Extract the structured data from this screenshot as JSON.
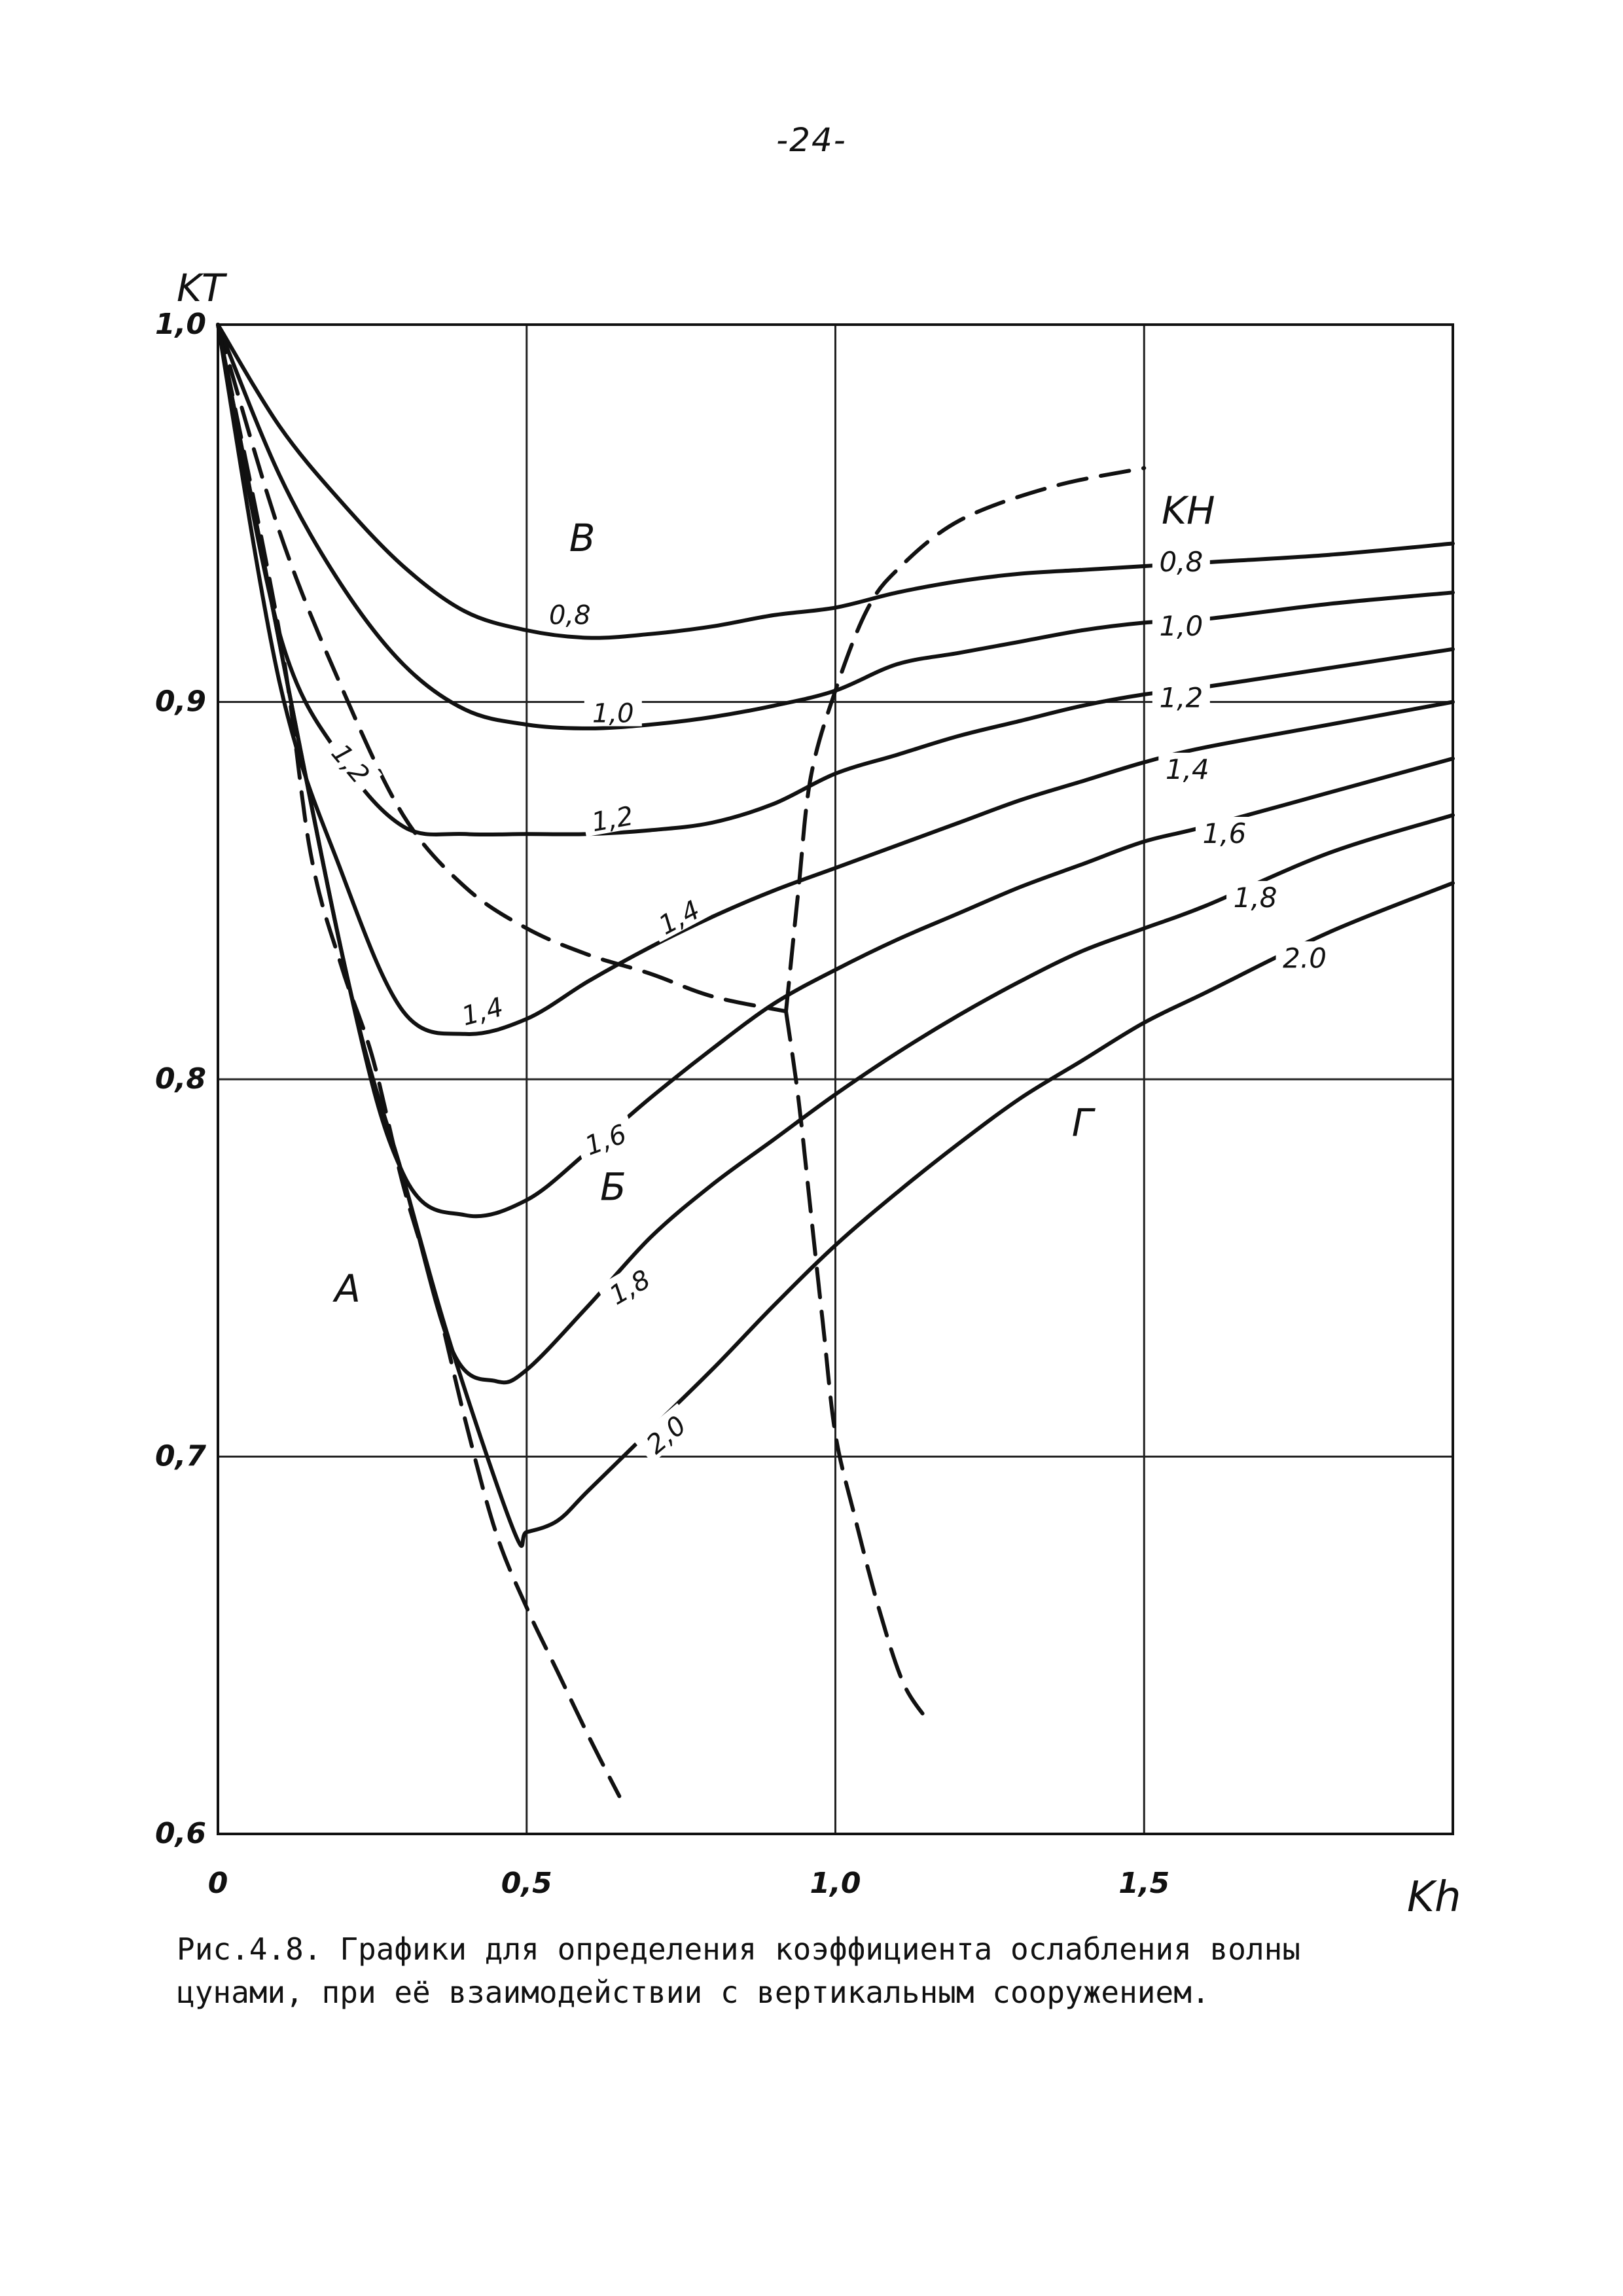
{
  "page_number": "-24-",
  "caption": {
    "line1": "Рис.4.8. Графики для определения коэффициента ослабления волны",
    "line2": "цунами, при её взаимодействии с вертикальным сооружением."
  },
  "chart_data": {
    "type": "line",
    "title": "",
    "xlabel": "Kh",
    "ylabel": "KT",
    "legend_title": "KH",
    "xlim": [
      0,
      2.0
    ],
    "ylim": [
      0.6,
      1.0
    ],
    "x_ticks": [
      {
        "value": 0,
        "label": "0"
      },
      {
        "value": 0.5,
        "label": "0,5"
      },
      {
        "value": 1.0,
        "label": "1,0"
      },
      {
        "value": 1.5,
        "label": "1,5"
      }
    ],
    "y_ticks": [
      {
        "value": 1.0,
        "label": "1,0"
      },
      {
        "value": 0.9,
        "label": "0,9"
      },
      {
        "value": 0.8,
        "label": "0,8"
      },
      {
        "value": 0.7,
        "label": "0,7"
      },
      {
        "value": 0.6,
        "label": "0,6"
      }
    ],
    "grid": true,
    "series": [
      {
        "name": "0,8",
        "points": [
          [
            0,
            1.0
          ],
          [
            0.1,
            0.973
          ],
          [
            0.2,
            0.953
          ],
          [
            0.3,
            0.936
          ],
          [
            0.4,
            0.924
          ],
          [
            0.5,
            0.919
          ],
          [
            0.6,
            0.917
          ],
          [
            0.7,
            0.918
          ],
          [
            0.8,
            0.92
          ],
          [
            0.9,
            0.923
          ],
          [
            1.0,
            0.925
          ],
          [
            1.1,
            0.929
          ],
          [
            1.2,
            0.932
          ],
          [
            1.3,
            0.934
          ],
          [
            1.4,
            0.935
          ],
          [
            1.5,
            0.936
          ],
          [
            1.6,
            0.937
          ],
          [
            1.8,
            0.939
          ],
          [
            2.0,
            0.942
          ]
        ]
      },
      {
        "name": "1,0",
        "points": [
          [
            0,
            1.0
          ],
          [
            0.1,
            0.96
          ],
          [
            0.2,
            0.931
          ],
          [
            0.3,
            0.91
          ],
          [
            0.4,
            0.898
          ],
          [
            0.5,
            0.894
          ],
          [
            0.6,
            0.893
          ],
          [
            0.7,
            0.894
          ],
          [
            0.8,
            0.896
          ],
          [
            0.9,
            0.899
          ],
          [
            1.0,
            0.903
          ],
          [
            1.1,
            0.91
          ],
          [
            1.2,
            0.913
          ],
          [
            1.3,
            0.916
          ],
          [
            1.4,
            0.919
          ],
          [
            1.5,
            0.921
          ],
          [
            1.6,
            0.922
          ],
          [
            1.8,
            0.926
          ],
          [
            2.0,
            0.929
          ]
        ]
      },
      {
        "name": "1,2",
        "points": [
          [
            0,
            1.0
          ],
          [
            0.1,
            0.918
          ],
          [
            0.2,
            0.885
          ],
          [
            0.3,
            0.867
          ],
          [
            0.4,
            0.865
          ],
          [
            0.5,
            0.865
          ],
          [
            0.6,
            0.865
          ],
          [
            0.7,
            0.866
          ],
          [
            0.8,
            0.868
          ],
          [
            0.9,
            0.873
          ],
          [
            1.0,
            0.881
          ],
          [
            1.1,
            0.886
          ],
          [
            1.2,
            0.891
          ],
          [
            1.3,
            0.895
          ],
          [
            1.4,
            0.899
          ],
          [
            1.5,
            0.902
          ],
          [
            1.6,
            0.904
          ],
          [
            1.8,
            0.909
          ],
          [
            2.0,
            0.914
          ]
        ]
      },
      {
        "name": "1,4",
        "points": [
          [
            0,
            1.0
          ],
          [
            0.1,
            0.905
          ],
          [
            0.2,
            0.855
          ],
          [
            0.3,
            0.818
          ],
          [
            0.4,
            0.812
          ],
          [
            0.5,
            0.816
          ],
          [
            0.6,
            0.826
          ],
          [
            0.7,
            0.835
          ],
          [
            0.8,
            0.843
          ],
          [
            0.9,
            0.85
          ],
          [
            1.0,
            0.856
          ],
          [
            1.1,
            0.862
          ],
          [
            1.2,
            0.868
          ],
          [
            1.3,
            0.874
          ],
          [
            1.4,
            0.879
          ],
          [
            1.5,
            0.884
          ],
          [
            1.6,
            0.888
          ],
          [
            1.8,
            0.894
          ],
          [
            2.0,
            0.9
          ]
        ]
      },
      {
        "name": "1,6",
        "points": [
          [
            0,
            1.0
          ],
          [
            0.2,
            0.834
          ],
          [
            0.3,
            0.775
          ],
          [
            0.4,
            0.764
          ],
          [
            0.5,
            0.768
          ],
          [
            0.6,
            0.781
          ],
          [
            0.7,
            0.795
          ],
          [
            0.8,
            0.808
          ],
          [
            0.9,
            0.82
          ],
          [
            1.0,
            0.829
          ],
          [
            1.1,
            0.837
          ],
          [
            1.2,
            0.844
          ],
          [
            1.3,
            0.851
          ],
          [
            1.4,
            0.857
          ],
          [
            1.5,
            0.863
          ],
          [
            1.6,
            0.867
          ],
          [
            1.8,
            0.876
          ],
          [
            2.0,
            0.885
          ]
        ]
      },
      {
        "name": "1,8",
        "points": [
          [
            0,
            1.0
          ],
          [
            0.2,
            0.834
          ],
          [
            0.3,
            0.774
          ],
          [
            0.38,
            0.728
          ],
          [
            0.45,
            0.72
          ],
          [
            0.5,
            0.723
          ],
          [
            0.6,
            0.74
          ],
          [
            0.7,
            0.758
          ],
          [
            0.8,
            0.772
          ],
          [
            0.9,
            0.784
          ],
          [
            1.0,
            0.796
          ],
          [
            1.1,
            0.807
          ],
          [
            1.2,
            0.817
          ],
          [
            1.3,
            0.826
          ],
          [
            1.4,
            0.834
          ],
          [
            1.5,
            0.84
          ],
          [
            1.6,
            0.846
          ],
          [
            1.8,
            0.86
          ],
          [
            2.0,
            0.87
          ]
        ]
      },
      {
        "name": "2.0",
        "points": [
          [
            0,
            1.0
          ],
          [
            0.2,
            0.834
          ],
          [
            0.3,
            0.774
          ],
          [
            0.38,
            0.728
          ],
          [
            0.48,
            0.68
          ],
          [
            0.5,
            0.68
          ],
          [
            0.55,
            0.683
          ],
          [
            0.6,
            0.691
          ],
          [
            0.7,
            0.707
          ],
          [
            0.8,
            0.723
          ],
          [
            0.9,
            0.74
          ],
          [
            1.0,
            0.756
          ],
          [
            1.1,
            0.77
          ],
          [
            1.2,
            0.783
          ],
          [
            1.3,
            0.795
          ],
          [
            1.4,
            0.805
          ],
          [
            1.5,
            0.815
          ],
          [
            1.6,
            0.823
          ],
          [
            1.8,
            0.839
          ],
          [
            2.0,
            0.852
          ]
        ]
      }
    ],
    "boundaries": [
      {
        "points": [
          [
            0,
            1.0
          ],
          [
            0.1,
            0.918
          ],
          [
            0.15,
            0.86
          ],
          [
            0.2,
            0.83
          ],
          [
            0.25,
            0.806
          ],
          [
            0.3,
            0.772
          ],
          [
            0.35,
            0.744
          ],
          [
            0.4,
            0.71
          ],
          [
            0.45,
            0.68
          ],
          [
            0.5,
            0.66
          ],
          [
            0.55,
            0.643
          ],
          [
            0.6,
            0.626
          ],
          [
            0.65,
            0.61
          ]
        ]
      },
      {
        "points": [
          [
            0,
            1.0
          ],
          [
            0.1,
            0.945
          ],
          [
            0.2,
            0.904
          ],
          [
            0.3,
            0.87
          ],
          [
            0.4,
            0.851
          ],
          [
            0.5,
            0.84
          ],
          [
            0.6,
            0.833
          ],
          [
            0.7,
            0.828
          ],
          [
            0.8,
            0.822
          ],
          [
            0.92,
            0.818
          ]
        ]
      },
      {
        "points": [
          [
            0.92,
            0.818
          ],
          [
            0.94,
            0.85
          ],
          [
            0.96,
            0.88
          ],
          [
            1.0,
            0.903
          ],
          [
            1.05,
            0.924
          ],
          [
            1.1,
            0.935
          ],
          [
            1.2,
            0.948
          ],
          [
            1.35,
            0.957
          ],
          [
            1.5,
            0.962
          ]
        ]
      },
      {
        "points": [
          [
            0.92,
            0.818
          ],
          [
            0.94,
            0.795
          ],
          [
            0.96,
            0.765
          ],
          [
            0.98,
            0.735
          ],
          [
            1.0,
            0.706
          ],
          [
            1.03,
            0.685
          ],
          [
            1.07,
            0.66
          ],
          [
            1.11,
            0.64
          ],
          [
            1.15,
            0.63
          ]
        ]
      }
    ],
    "region_labels": [
      {
        "text": "В",
        "x": 0.59,
        "y": 0.94
      },
      {
        "text": "А",
        "x": 0.21,
        "y": 0.741
      },
      {
        "text": "Б",
        "x": 0.64,
        "y": 0.768
      },
      {
        "text": "Г",
        "x": 1.4,
        "y": 0.785
      }
    ],
    "curve_labels": [
      {
        "text": "0,8",
        "x": 0.57,
        "y": 0.922,
        "angle": 0
      },
      {
        "text": "1,0",
        "x": 0.64,
        "y": 0.896,
        "angle": 0
      },
      {
        "text": "1,2",
        "x": 0.21,
        "y": 0.883,
        "angle": 50
      },
      {
        "text": "1,2",
        "x": 0.64,
        "y": 0.868,
        "angle": -10
      },
      {
        "text": "1,4",
        "x": 0.75,
        "y": 0.842,
        "angle": -28
      },
      {
        "text": "1,4",
        "x": 0.43,
        "y": 0.817,
        "angle": -15
      },
      {
        "text": "1,6",
        "x": 0.63,
        "y": 0.783,
        "angle": -20
      },
      {
        "text": "1,8",
        "x": 0.67,
        "y": 0.744,
        "angle": -30
      },
      {
        "text": "2,0",
        "x": 0.73,
        "y": 0.705,
        "angle": -40
      }
    ],
    "right_labels": [
      {
        "text": "0,8",
        "x": 1.56,
        "y": 0.936
      },
      {
        "text": "1,0",
        "x": 1.56,
        "y": 0.919
      },
      {
        "text": "1,2",
        "x": 1.56,
        "y": 0.9
      },
      {
        "text": "1,4",
        "x": 1.57,
        "y": 0.881
      },
      {
        "text": "1,6",
        "x": 1.63,
        "y": 0.864
      },
      {
        "text": "1,8",
        "x": 1.68,
        "y": 0.847
      },
      {
        "text": "2.0",
        "x": 1.76,
        "y": 0.831
      }
    ]
  }
}
